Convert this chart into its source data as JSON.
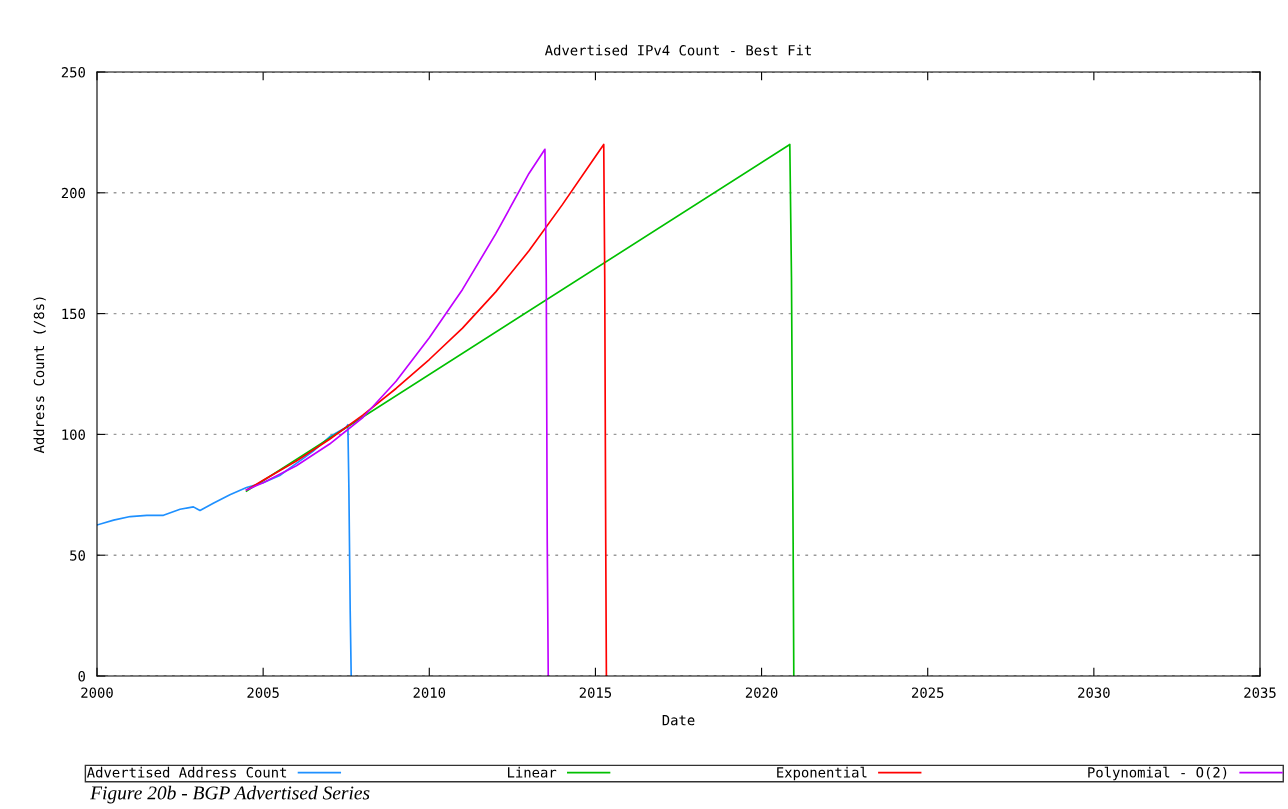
{
  "chart_data": {
    "type": "line",
    "title": "Advertised IPv4 Count - Best Fit",
    "xlabel": "Date",
    "ylabel": "Address Count (/8s)",
    "xlim": [
      2000,
      2035
    ],
    "xticks": [
      2000,
      2005,
      2010,
      2015,
      2020,
      2025,
      2030,
      2035
    ],
    "ylim": [
      0,
      250
    ],
    "yticks": [
      0,
      50,
      100,
      150,
      200,
      250
    ],
    "grid": "y",
    "legend": "bottom",
    "line_style": "solid",
    "marker": "none",
    "series": [
      {
        "name": "Advertised Address Count",
        "color": "#1e90ff",
        "x": [
          2000,
          2000.5,
          2001,
          2001.5,
          2002,
          2002.5,
          2002.9,
          2003.1,
          2003.5,
          2004,
          2004.5,
          2005,
          2005.5,
          2006,
          2006.5,
          2007,
          2007.5,
          2007.55,
          2007.58,
          2007.62,
          2007.65
        ],
        "values": [
          62.5,
          64.5,
          66,
          66.5,
          66.5,
          69,
          70,
          68.5,
          71.5,
          75,
          78,
          80,
          83,
          88,
          93,
          99,
          103,
          104,
          78,
          27,
          0
        ]
      },
      {
        "name": "Linear",
        "color": "#00c000",
        "x": [
          2004.5,
          2020.85,
          2020.9,
          2020.95,
          2020.97
        ],
        "values": [
          76.5,
          220,
          165,
          55,
          0
        ]
      },
      {
        "name": "Exponential",
        "color": "#ff0000",
        "x": [
          2004.5,
          2005,
          2006,
          2007,
          2008,
          2009,
          2010,
          2011,
          2012,
          2013,
          2014,
          2015,
          2015.25,
          2015.28,
          2015.31,
          2015.33
        ],
        "values": [
          77,
          81,
          89,
          98,
          108,
          119,
          131,
          144,
          159,
          176,
          195,
          215,
          220,
          165,
          55,
          0
        ]
      },
      {
        "name": "Polynomial - O(2)",
        "color": "#c000ff",
        "x": [
          2004.5,
          2005,
          2006,
          2007,
          2008,
          2009,
          2010,
          2011,
          2012,
          2013,
          2013.48,
          2013.52,
          2013.55,
          2013.58
        ],
        "values": [
          77,
          80,
          87,
          96,
          107,
          122,
          140,
          160,
          183,
          208,
          218,
          165,
          55,
          0
        ]
      }
    ],
    "annotations": [
      "Figure 20b - BGP Advertised Series"
    ]
  }
}
